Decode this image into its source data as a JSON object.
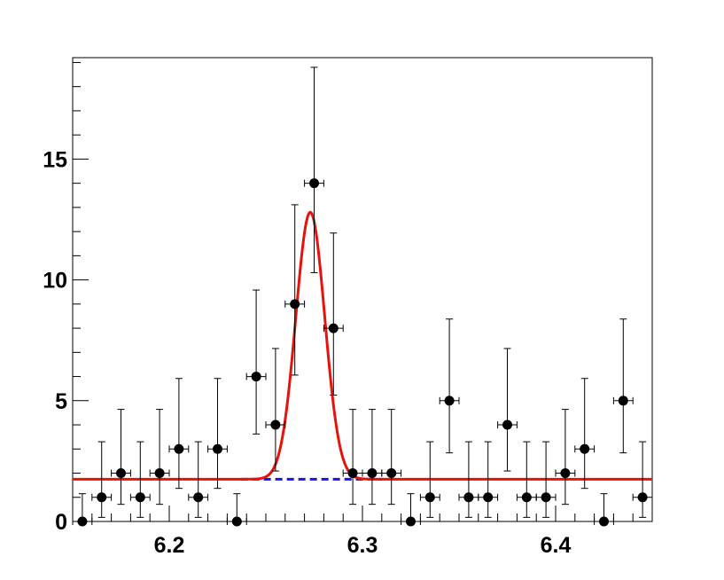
{
  "chart_data": {
    "type": "scatter",
    "xlim": [
      6.15,
      6.45
    ],
    "ylim": [
      0,
      19.2
    ],
    "x_ticks": [
      6.2,
      6.3,
      6.4
    ],
    "x_tick_labels": [
      "6.2",
      "6.3",
      "6.4"
    ],
    "y_ticks": [
      0,
      5,
      10,
      15
    ],
    "y_tick_labels": [
      "0",
      "5",
      "10",
      "15"
    ],
    "grid": false,
    "bin_width": 0.01,
    "data": {
      "x": [
        6.155,
        6.165,
        6.175,
        6.185,
        6.195,
        6.205,
        6.215,
        6.225,
        6.235,
        6.245,
        6.255,
        6.265,
        6.275,
        6.285,
        6.295,
        6.305,
        6.315,
        6.325,
        6.335,
        6.345,
        6.355,
        6.365,
        6.375,
        6.385,
        6.395,
        6.405,
        6.415,
        6.425,
        6.435,
        6.445
      ],
      "y": [
        0,
        1,
        2,
        1,
        2,
        3,
        1,
        3,
        0,
        6,
        4,
        9,
        14,
        8,
        2,
        2,
        2,
        0,
        1,
        5,
        1,
        1,
        4,
        1,
        1,
        2,
        3,
        0,
        5,
        1
      ],
      "err_low": [
        0,
        0.83,
        1.29,
        0.83,
        1.29,
        1.63,
        0.83,
        1.63,
        0,
        2.38,
        1.91,
        2.94,
        3.7,
        2.77,
        1.29,
        1.29,
        1.29,
        0,
        0.83,
        2.16,
        0.83,
        0.83,
        1.91,
        0.83,
        0.83,
        1.29,
        1.63,
        0,
        2.16,
        0.83
      ],
      "err_high": [
        1.15,
        2.3,
        2.64,
        2.3,
        2.64,
        2.92,
        2.3,
        2.92,
        1.15,
        3.58,
        3.16,
        4.11,
        4.8,
        3.94,
        2.64,
        2.64,
        2.64,
        1.15,
        2.3,
        3.38,
        2.3,
        2.3,
        3.16,
        2.3,
        2.3,
        2.64,
        2.92,
        1.15,
        3.38,
        2.3
      ],
      "color": "#000000"
    },
    "fit": {
      "model": "gaussian + constant",
      "mean": 6.273,
      "sigma": 0.0075,
      "amplitude": 11.05,
      "background": 1.75,
      "color": "#e8120c"
    },
    "background_line": {
      "level": 1.75,
      "x_range": [
        6.237,
        6.31
      ],
      "color": "#1616e6",
      "style": "dashed"
    }
  }
}
